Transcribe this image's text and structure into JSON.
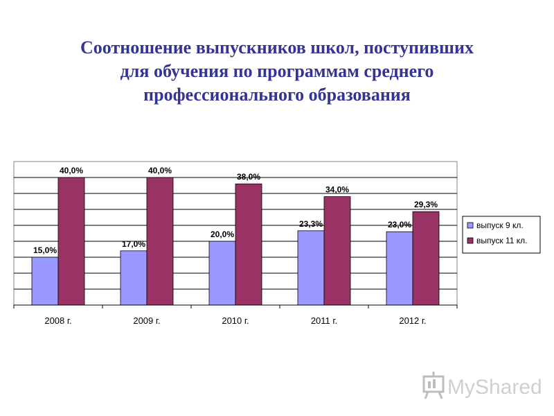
{
  "slide": {
    "title_lines": [
      "Соотношение выпускников школ, поступивших",
      "для обучения по программам среднего",
      "профессионального образования"
    ]
  },
  "chart_data": {
    "type": "bar",
    "title": "",
    "xlabel": "",
    "ylabel": "",
    "categories": [
      "2008 г.",
      "2009 г.",
      "2010 г.",
      "2011 г.",
      "2012 г."
    ],
    "series": [
      {
        "name": "выпуск 9 кл.",
        "color": "#9999ff",
        "values": [
          15.0,
          17.0,
          20.0,
          23.3,
          23.0
        ],
        "labels": [
          "15,0%",
          "17,0%",
          "20,0%",
          "23,3%",
          "23,0%"
        ]
      },
      {
        "name": "выпуск 11 кл.",
        "color": "#993366",
        "values": [
          40.0,
          40.0,
          38.0,
          34.0,
          29.3
        ],
        "labels": [
          "40,0%",
          "40,0%",
          "38,0%",
          "34,0%",
          "29,3%"
        ]
      }
    ],
    "ylim": [
      0,
      45
    ],
    "y_tick_labels_shown": false,
    "grid": true,
    "legend": "right"
  },
  "watermark": {
    "text": "MyShared",
    "icon": "projector-screen-icon"
  }
}
